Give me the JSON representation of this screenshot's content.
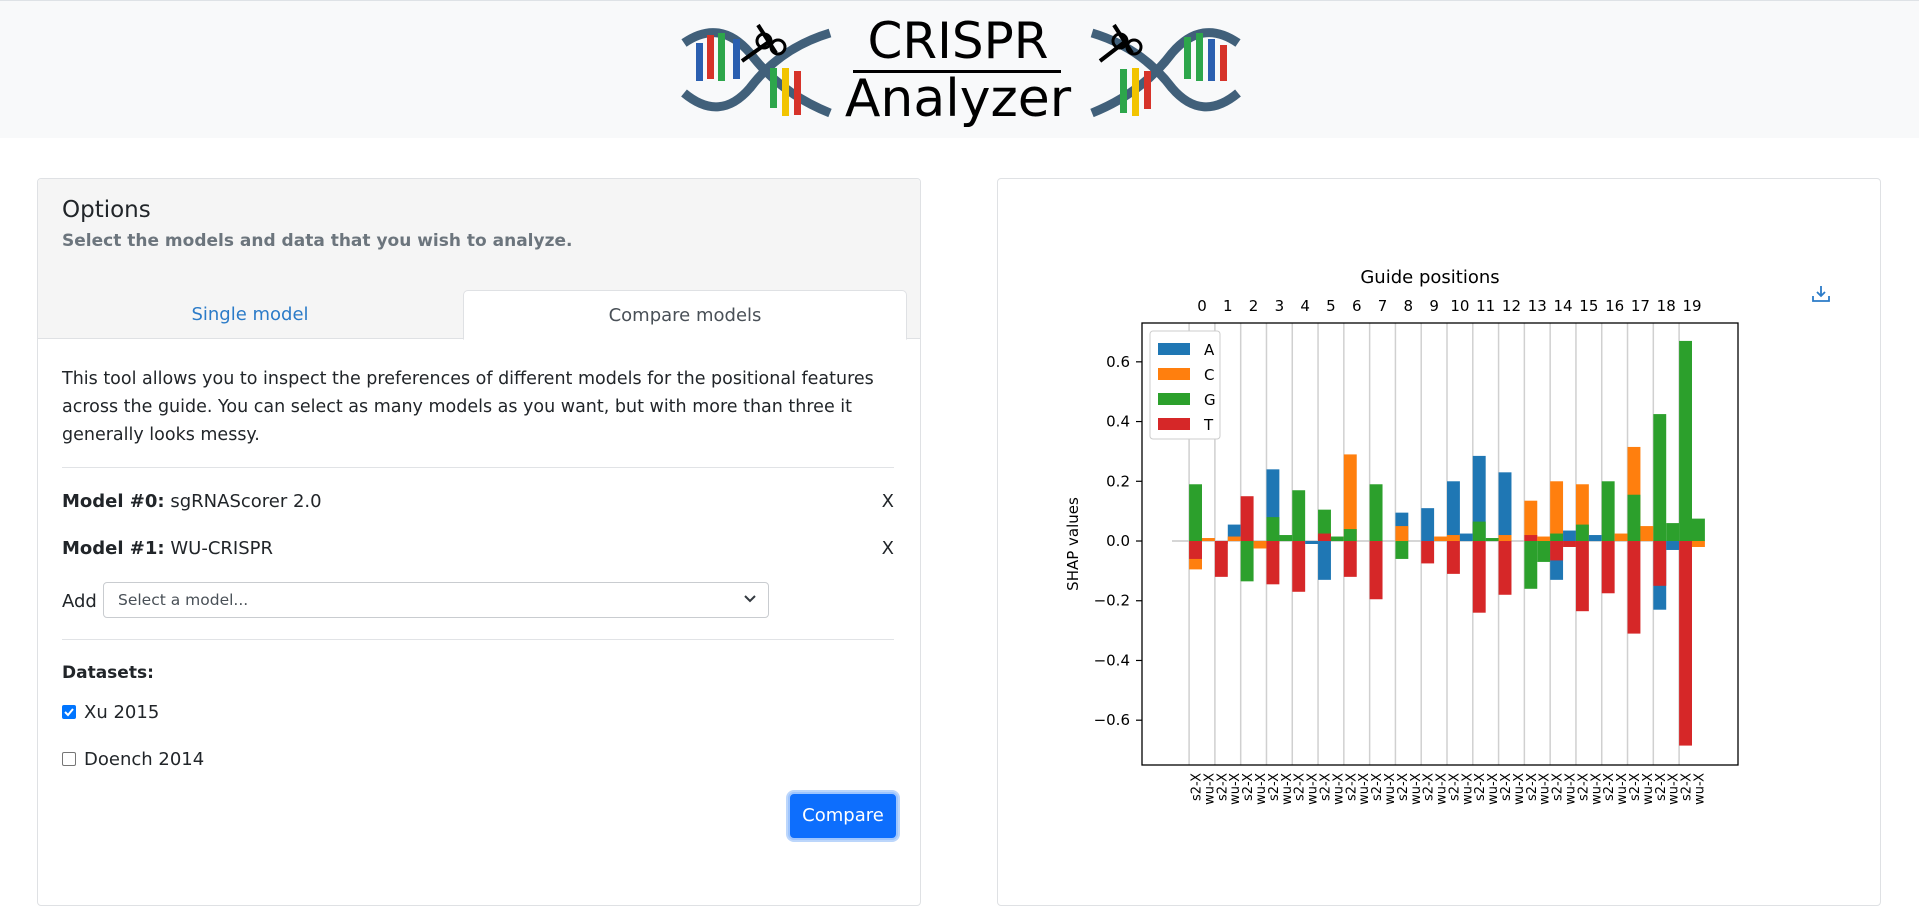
{
  "logo": {
    "line1": "CRISPR",
    "line2": "Analyzer"
  },
  "options": {
    "title": "Options",
    "subtitle": "Select the models and data that you wish to analyze.",
    "tabs": [
      {
        "label": "Single model",
        "active": false
      },
      {
        "label": "Compare models",
        "active": true
      }
    ],
    "description": "This tool allows you to inspect the preferences of different models for the positional features across the guide. You can select as many models as you want, but with more than three it generally looks messy.",
    "models": [
      {
        "label": "Model #0:",
        "name": "sgRNAScorer 2.0",
        "remove": "X"
      },
      {
        "label": "Model #1:",
        "name": "WU-CRISPR",
        "remove": "X"
      }
    ],
    "add_label": "Add",
    "select_placeholder": "Select a model...",
    "datasets_title": "Datasets:",
    "datasets": [
      {
        "label": "Xu 2015",
        "checked": true
      },
      {
        "label": "Doench 2014",
        "checked": false
      }
    ],
    "compare_button": "Compare"
  },
  "colors": {
    "A": "#1f77b4",
    "C": "#ff7f0e",
    "G": "#2ca02c",
    "T": "#d62728",
    "accent": "#0d6efd"
  },
  "chart_data": {
    "type": "bar",
    "title": "Guide positions",
    "ylabel": "SHAP values",
    "ylim": [
      -0.75,
      0.73
    ],
    "yticks": [
      -0.6,
      -0.4,
      -0.2,
      0.0,
      0.2,
      0.4,
      0.6
    ],
    "positions": [
      "0",
      "1",
      "2",
      "3",
      "4",
      "5",
      "6",
      "7",
      "8",
      "9",
      "10",
      "11",
      "12",
      "13",
      "14",
      "15",
      "16",
      "17",
      "18",
      "19"
    ],
    "bar_labels": [
      "s2-X",
      "wu-X"
    ],
    "legend": [
      "A",
      "C",
      "G",
      "T"
    ],
    "legend_position": "top-left",
    "series": [
      {
        "name": "A",
        "model0": [
          0.0,
          0.0,
          0.0,
          0.24,
          0.0,
          -0.13,
          0.0,
          0.0,
          0.095,
          0.11,
          0.2,
          0.285,
          0.23,
          0.0,
          -0.13,
          0.0,
          0.0,
          0.0,
          -0.23,
          0.0
        ],
        "model1": [
          0.0,
          0.055,
          0.0,
          0.0,
          -0.01,
          0.0,
          0.0,
          0.0,
          0.0,
          0.0,
          0.025,
          0.0,
          0.0,
          0.0,
          0.035,
          0.02,
          0.0,
          0.0,
          -0.03,
          0.0
        ]
      },
      {
        "name": "C",
        "model0": [
          -0.095,
          -0.01,
          0.0,
          -0.01,
          0.0,
          0.02,
          0.29,
          0.0,
          0.05,
          0.0,
          0.02,
          0.0,
          0.02,
          0.135,
          0.2,
          0.19,
          0.0,
          0.315,
          0.0,
          0.0
        ],
        "model1": [
          0.01,
          0.015,
          -0.025,
          0.0,
          0.0,
          0.0,
          0.0,
          0.0,
          0.0,
          0.015,
          0.0,
          0.0,
          0.0,
          0.015,
          0.0,
          0.0,
          0.025,
          0.05,
          0.0,
          -0.02
        ]
      },
      {
        "name": "G",
        "model0": [
          0.19,
          0.0,
          -0.135,
          0.08,
          0.17,
          0.105,
          0.04,
          0.19,
          -0.06,
          0.0,
          0.0,
          0.065,
          0.0,
          -0.16,
          0.025,
          0.055,
          0.2,
          0.155,
          0.425,
          0.67
        ],
        "model1": [
          0.0,
          0.0,
          0.0,
          0.02,
          0.0,
          0.015,
          0.0,
          0.0,
          0.0,
          0.0,
          0.0,
          0.01,
          0.0,
          -0.07,
          0.0,
          0.0,
          0.0,
          0.0,
          0.06,
          0.075
        ]
      },
      {
        "name": "T",
        "model0": [
          -0.06,
          -0.12,
          0.15,
          -0.145,
          -0.17,
          0.025,
          -0.12,
          -0.195,
          0.0,
          -0.075,
          -0.11,
          -0.24,
          -0.18,
          0.02,
          -0.065,
          -0.235,
          -0.175,
          -0.31,
          -0.15,
          -0.685
        ],
        "model1": [
          0.0,
          0.0,
          0.0,
          0.0,
          0.0,
          0.0,
          0.0,
          0.0,
          0.0,
          0.0,
          0.0,
          0.0,
          0.0,
          0.0,
          -0.02,
          0.0,
          0.0,
          0.0,
          0.0,
          0.0
        ]
      }
    ]
  }
}
